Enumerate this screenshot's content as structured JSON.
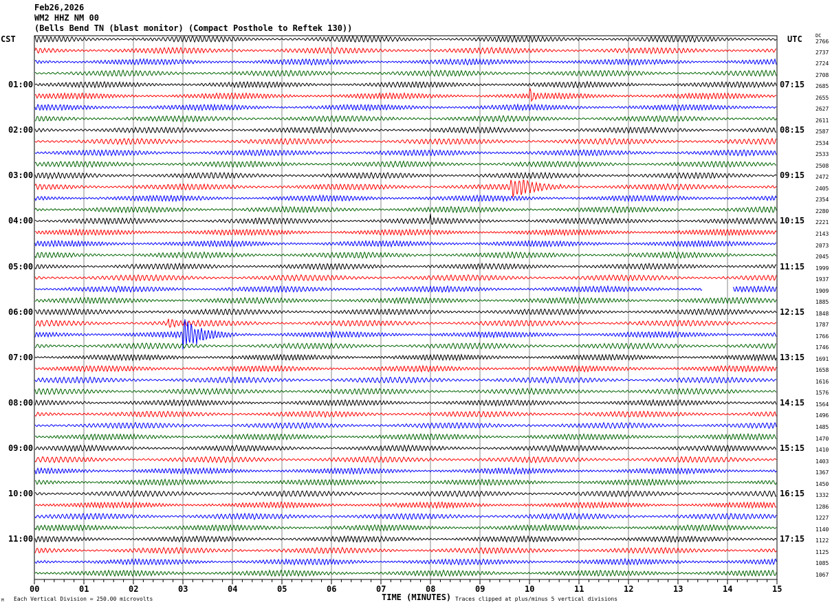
{
  "chart_data": {
    "type": "line",
    "title_lines": [
      "Feb26,2026",
      "WM2 HHZ NM 00",
      "(Bells Bend TN (blast monitor) (Compact Posthole to Reftek 130))"
    ],
    "left_axis_title": "CST",
    "right_axis_title": "UTC",
    "dc_title": "DC",
    "xlabel": "TIME (MINUTES)",
    "xticks": [
      "00",
      "01",
      "02",
      "03",
      "04",
      "05",
      "06",
      "07",
      "08",
      "09",
      "10",
      "11",
      "12",
      "13",
      "14",
      "15"
    ],
    "xlim": [
      0,
      15
    ],
    "left_labels": [
      {
        "row": 4,
        "text": "01:00"
      },
      {
        "row": 8,
        "text": "02:00"
      },
      {
        "row": 12,
        "text": "03:00"
      },
      {
        "row": 16,
        "text": "04:00"
      },
      {
        "row": 20,
        "text": "05:00"
      },
      {
        "row": 24,
        "text": "06:00"
      },
      {
        "row": 28,
        "text": "07:00"
      },
      {
        "row": 32,
        "text": "08:00"
      },
      {
        "row": 36,
        "text": "09:00"
      },
      {
        "row": 40,
        "text": "10:00"
      },
      {
        "row": 44,
        "text": "11:00"
      }
    ],
    "right_labels": [
      {
        "row": 4,
        "text": "07:15"
      },
      {
        "row": 8,
        "text": "08:15"
      },
      {
        "row": 12,
        "text": "09:15"
      },
      {
        "row": 16,
        "text": "10:15"
      },
      {
        "row": 20,
        "text": "11:15"
      },
      {
        "row": 24,
        "text": "12:15"
      },
      {
        "row": 28,
        "text": "13:15"
      },
      {
        "row": 32,
        "text": "14:15"
      },
      {
        "row": 36,
        "text": "15:15"
      },
      {
        "row": 40,
        "text": "16:15"
      },
      {
        "row": 44,
        "text": "17:15"
      }
    ],
    "dc_offsets": [
      "2766",
      "2737",
      "2724",
      "2708",
      "2685",
      "2655",
      "2627",
      "2611",
      "2587",
      "2534",
      "2533",
      "2508",
      "2472",
      "2405",
      "2354",
      "2280",
      "2221",
      "2143",
      "2073",
      "2045",
      "1999",
      "1937",
      "1909",
      "1885",
      "1848",
      "1787",
      "1766",
      "1746",
      "1691",
      "1658",
      "1616",
      "1576",
      "1564",
      "1496",
      "1485",
      "1470",
      "1410",
      "1403",
      "1367",
      "1450",
      "1332",
      "1286",
      "1227",
      "1140",
      "1122",
      "1125",
      "1085",
      "1067"
    ],
    "trace_colors": [
      "#000000",
      "#ff0000",
      "#0000ff",
      "#006400"
    ],
    "events": [
      {
        "row": 5,
        "start": 10.0,
        "end": 10.15,
        "amp": 12
      },
      {
        "row": 13,
        "start": 9.6,
        "end": 10.9,
        "amp": 10
      },
      {
        "row": 16,
        "start": 8.0,
        "end": 8.1,
        "amp": 5
      },
      {
        "row": 25,
        "start": 2.7,
        "end": 2.95,
        "amp": 7
      },
      {
        "row": 26,
        "start": 3.0,
        "end": 4.1,
        "amp": 16
      }
    ],
    "gaps": [
      {
        "row": 22,
        "start": 13.5,
        "end": 14.1
      }
    ],
    "footer_left": "Each Vertical Division =  250.00 microvolts",
    "footer_right": "Traces clipped at plus/minus 5 vertical divisions",
    "corner_mark": "M"
  }
}
